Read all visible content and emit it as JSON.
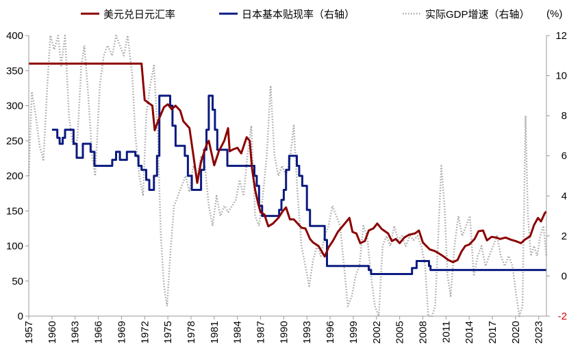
{
  "chart_data": {
    "type": "line",
    "title": "",
    "unit_label": "(%)",
    "legend_position": "top",
    "x_range": [
      1957,
      2024
    ],
    "x_ticks": [
      "1957",
      "1960",
      "1963",
      "1966",
      "1969",
      "1972",
      "1975",
      "1978",
      "1981",
      "1984",
      "1987",
      "1990",
      "1993",
      "1996",
      "1999",
      "2002",
      "2005",
      "2008",
      "2011",
      "2014",
      "2017",
      "2020",
      "2023"
    ],
    "y_left": {
      "range": [
        0,
        400
      ],
      "ticks": [
        "0",
        "50",
        "100",
        "150",
        "200",
        "250",
        "300",
        "350",
        "400"
      ]
    },
    "y_right": {
      "range": [
        -2,
        12
      ],
      "ticks": [
        "-2",
        "0",
        "2",
        "4",
        "6",
        "8",
        "10",
        "12"
      ],
      "negative_tick_color": "#d40000"
    },
    "series": [
      {
        "name": "美元兑日元汇率",
        "axis": "left",
        "color": "#8b0000",
        "style": "solid",
        "points": [
          [
            1957,
            360
          ],
          [
            1971.6,
            360
          ],
          [
            1972,
            308
          ],
          [
            1973,
            300
          ],
          [
            1973.3,
            265
          ],
          [
            1973.8,
            280
          ],
          [
            1974.5,
            298
          ],
          [
            1975,
            302
          ],
          [
            1975.5,
            295
          ],
          [
            1976,
            300
          ],
          [
            1976.6,
            293
          ],
          [
            1977,
            278
          ],
          [
            1977.8,
            268
          ],
          [
            1978.3,
            230
          ],
          [
            1978.8,
            190
          ],
          [
            1979.3,
            220
          ],
          [
            1980,
            244
          ],
          [
            1980.3,
            250
          ],
          [
            1981,
            215
          ],
          [
            1981.6,
            235
          ],
          [
            1982.3,
            250
          ],
          [
            1982.8,
            268
          ],
          [
            1983,
            235
          ],
          [
            1983.5,
            238
          ],
          [
            1984,
            240
          ],
          [
            1984.5,
            232
          ],
          [
            1985.2,
            255
          ],
          [
            1985.6,
            250
          ],
          [
            1985.9,
            210
          ],
          [
            1986.3,
            180
          ],
          [
            1986.7,
            160
          ],
          [
            1987,
            148
          ],
          [
            1987.5,
            145
          ],
          [
            1988,
            128
          ],
          [
            1988.6,
            132
          ],
          [
            1989.3,
            140
          ],
          [
            1989.9,
            150
          ],
          [
            1990.3,
            155
          ],
          [
            1990.8,
            138
          ],
          [
            1991.3,
            138
          ],
          [
            1991.8,
            132
          ],
          [
            1992.3,
            126
          ],
          [
            1992.8,
            125
          ],
          [
            1993.4,
            110
          ],
          [
            1993.8,
            105
          ],
          [
            1994.5,
            100
          ],
          [
            1995.3,
            85
          ],
          [
            1995.8,
            98
          ],
          [
            1996.4,
            108
          ],
          [
            1997,
            120
          ],
          [
            1997.6,
            128
          ],
          [
            1998.5,
            140
          ],
          [
            1998.9,
            120
          ],
          [
            1999.4,
            118
          ],
          [
            1999.9,
            104
          ],
          [
            2000.5,
            107
          ],
          [
            2001,
            122
          ],
          [
            2001.6,
            125
          ],
          [
            2002.1,
            132
          ],
          [
            2002.7,
            124
          ],
          [
            2003.5,
            118
          ],
          [
            2004,
            107
          ],
          [
            2004.5,
            110
          ],
          [
            2005,
            104
          ],
          [
            2005.6,
            112
          ],
          [
            2006.2,
            116
          ],
          [
            2007,
            118
          ],
          [
            2007.5,
            122
          ],
          [
            2008,
            105
          ],
          [
            2008.9,
            95
          ],
          [
            2009.5,
            93
          ],
          [
            2010,
            90
          ],
          [
            2010.7,
            85
          ],
          [
            2011.3,
            80
          ],
          [
            2011.9,
            77
          ],
          [
            2012.5,
            80
          ],
          [
            2013,
            92
          ],
          [
            2013.5,
            100
          ],
          [
            2014,
            102
          ],
          [
            2014.7,
            110
          ],
          [
            2015.2,
            121
          ],
          [
            2015.8,
            122
          ],
          [
            2016.3,
            108
          ],
          [
            2016.9,
            113
          ],
          [
            2017.5,
            112
          ],
          [
            2018,
            110
          ],
          [
            2018.7,
            112
          ],
          [
            2019.4,
            109
          ],
          [
            2020,
            107
          ],
          [
            2020.7,
            104
          ],
          [
            2021.2,
            109
          ],
          [
            2021.9,
            114
          ],
          [
            2022.4,
            130
          ],
          [
            2022.9,
            140
          ],
          [
            2023.3,
            135
          ],
          [
            2023.8,
            147
          ],
          [
            2024,
            149
          ]
        ]
      },
      {
        "name": "日本基本贴现率（右轴）",
        "axis": "right",
        "color": "#0a1a7f",
        "style": "step",
        "points": [
          [
            1960,
            7.3
          ],
          [
            1960.7,
            6.9
          ],
          [
            1961,
            6.6
          ],
          [
            1961.4,
            6.9
          ],
          [
            1961.7,
            7.3
          ],
          [
            1962.8,
            6.6
          ],
          [
            1963.2,
            5.9
          ],
          [
            1964,
            6.6
          ],
          [
            1965,
            6.2
          ],
          [
            1965.5,
            5.5
          ],
          [
            1967.8,
            5.8
          ],
          [
            1968.3,
            6.2
          ],
          [
            1968.8,
            5.8
          ],
          [
            1969.7,
            6.2
          ],
          [
            1970.8,
            6.0
          ],
          [
            1971.2,
            5.5
          ],
          [
            1971.6,
            5.3
          ],
          [
            1972.2,
            4.8
          ],
          [
            1972.6,
            4.3
          ],
          [
            1973.2,
            5.0
          ],
          [
            1973.6,
            6.0
          ],
          [
            1973.9,
            9.0
          ],
          [
            1975.3,
            8.5
          ],
          [
            1975.6,
            7.5
          ],
          [
            1976,
            6.5
          ],
          [
            1977.2,
            6.0
          ],
          [
            1977.6,
            5.0
          ],
          [
            1978.1,
            4.3
          ],
          [
            1978.9,
            4.3
          ],
          [
            1979.3,
            5.3
          ],
          [
            1979.7,
            6.3
          ],
          [
            1980,
            7.3
          ],
          [
            1980.3,
            9.0
          ],
          [
            1980.8,
            8.3
          ],
          [
            1981.1,
            7.3
          ],
          [
            1981.4,
            6.3
          ],
          [
            1982.7,
            5.5
          ],
          [
            1986.2,
            5.0
          ],
          [
            1986.5,
            4.5
          ],
          [
            1986.8,
            3.5
          ],
          [
            1987.2,
            3.0
          ],
          [
            1988.6,
            3.0
          ],
          [
            1989.4,
            3.3
          ],
          [
            1989.7,
            3.8
          ],
          [
            1990,
            4.3
          ],
          [
            1990.3,
            5.3
          ],
          [
            1990.7,
            6.0
          ],
          [
            1991.7,
            5.5
          ],
          [
            1992,
            5.0
          ],
          [
            1992.4,
            4.5
          ],
          [
            1993,
            3.3
          ],
          [
            1993.4,
            2.5
          ],
          [
            1995.3,
            1.8
          ],
          [
            1995.6,
            0.5
          ],
          [
            2001,
            0.3
          ],
          [
            2001.3,
            0.1
          ],
          [
            2006.6,
            0.4
          ],
          [
            2007.2,
            0.75
          ],
          [
            2008.8,
            0.5
          ],
          [
            2009,
            0.3
          ],
          [
            2024,
            0.3
          ]
        ]
      },
      {
        "name": "实际GDP增速（右轴）",
        "axis": "right",
        "color": "#a6a6a6",
        "style": "dotted",
        "points": [
          [
            1957,
            5.0
          ],
          [
            1957.4,
            9.2
          ],
          [
            1957.9,
            8.0
          ],
          [
            1958.4,
            6.5
          ],
          [
            1958.9,
            5.8
          ],
          [
            1959.4,
            9.5
          ],
          [
            1959.8,
            12.0
          ],
          [
            1960.3,
            11.3
          ],
          [
            1960.8,
            12.0
          ],
          [
            1961.2,
            10.5
          ],
          [
            1961.7,
            12.0
          ],
          [
            1962.2,
            8.0
          ],
          [
            1962.7,
            6.5
          ],
          [
            1963.3,
            6.8
          ],
          [
            1963.8,
            10.5
          ],
          [
            1964.2,
            11.5
          ],
          [
            1964.7,
            9.0
          ],
          [
            1965.2,
            6.0
          ],
          [
            1965.6,
            5.0
          ],
          [
            1966.2,
            9.5
          ],
          [
            1966.7,
            11.0
          ],
          [
            1967.2,
            11.5
          ],
          [
            1967.8,
            11.0
          ],
          [
            1968.3,
            12.0
          ],
          [
            1968.8,
            11.5
          ],
          [
            1969.3,
            11.0
          ],
          [
            1969.8,
            12.0
          ],
          [
            1970.4,
            10.0
          ],
          [
            1970.8,
            7.0
          ],
          [
            1971.3,
            5.0
          ],
          [
            1971.8,
            4.0
          ],
          [
            1972.2,
            8.0
          ],
          [
            1972.7,
            9.5
          ],
          [
            1973.2,
            10.5
          ],
          [
            1973.7,
            7.0
          ],
          [
            1974.1,
            2.0
          ],
          [
            1974.5,
            -0.5
          ],
          [
            1974.9,
            -1.5
          ],
          [
            1975.3,
            1.0
          ],
          [
            1975.8,
            3.5
          ],
          [
            1976.3,
            4.0
          ],
          [
            1976.8,
            4.5
          ],
          [
            1977.3,
            5.0
          ],
          [
            1977.8,
            4.2
          ],
          [
            1978.3,
            5.5
          ],
          [
            1978.8,
            5.0
          ],
          [
            1979.3,
            6.0
          ],
          [
            1979.8,
            5.5
          ],
          [
            1980.3,
            3.5
          ],
          [
            1980.8,
            2.5
          ],
          [
            1981.3,
            4.0
          ],
          [
            1981.8,
            3.0
          ],
          [
            1982.3,
            3.5
          ],
          [
            1982.8,
            3.2
          ],
          [
            1983.3,
            3.5
          ],
          [
            1983.8,
            3.8
          ],
          [
            1984.3,
            4.8
          ],
          [
            1984.8,
            4.0
          ],
          [
            1985.3,
            6.0
          ],
          [
            1985.8,
            7.5
          ],
          [
            1986.3,
            3.0
          ],
          [
            1986.8,
            2.5
          ],
          [
            1987.3,
            4.0
          ],
          [
            1987.8,
            6.0
          ],
          [
            1988.3,
            9.5
          ],
          [
            1988.8,
            6.0
          ],
          [
            1989.3,
            5.0
          ],
          [
            1989.8,
            5.5
          ],
          [
            1990.3,
            5.0
          ],
          [
            1990.8,
            5.8
          ],
          [
            1991.3,
            7.5
          ],
          [
            1991.8,
            4.0
          ],
          [
            1992.3,
            1.5
          ],
          [
            1992.8,
            0.5
          ],
          [
            1993.3,
            -0.5
          ],
          [
            1993.8,
            0.8
          ],
          [
            1994.3,
            1.5
          ],
          [
            1994.8,
            1.0
          ],
          [
            1995.3,
            2.0
          ],
          [
            1995.8,
            2.5
          ],
          [
            1996.3,
            3.5
          ],
          [
            1996.8,
            3.0
          ],
          [
            1997.3,
            2.5
          ],
          [
            1997.8,
            0.5
          ],
          [
            1998.3,
            -1.5
          ],
          [
            1998.8,
            -1.0
          ],
          [
            1999.3,
            0.0
          ],
          [
            1999.8,
            0.5
          ],
          [
            2000.3,
            2.5
          ],
          [
            2000.8,
            2.0
          ],
          [
            2001.3,
            0.0
          ],
          [
            2001.8,
            -1.5
          ],
          [
            2002.3,
            -2.0
          ],
          [
            2002.8,
            1.5
          ],
          [
            2003.3,
            2.0
          ],
          [
            2003.8,
            1.5
          ],
          [
            2004.3,
            2.5
          ],
          [
            2004.8,
            1.8
          ],
          [
            2005.3,
            2.0
          ],
          [
            2005.8,
            1.5
          ],
          [
            2006.3,
            2.0
          ],
          [
            2006.8,
            1.8
          ],
          [
            2007.3,
            2.0
          ],
          [
            2007.8,
            1.5
          ],
          [
            2008.3,
            0.5
          ],
          [
            2008.7,
            -2.0
          ],
          [
            2009.2,
            -2.0
          ],
          [
            2009.6,
            -1.5
          ],
          [
            2010.0,
            2.0
          ],
          [
            2010.4,
            5.5
          ],
          [
            2010.8,
            3.5
          ],
          [
            2011.2,
            0.0
          ],
          [
            2011.6,
            -1.0
          ],
          [
            2012.1,
            1.5
          ],
          [
            2012.6,
            3.0
          ],
          [
            2013.1,
            2.0
          ],
          [
            2013.6,
            2.5
          ],
          [
            2014.1,
            3.0
          ],
          [
            2014.6,
            0.0
          ],
          [
            2015.1,
            1.0
          ],
          [
            2015.6,
            1.5
          ],
          [
            2016.1,
            0.5
          ],
          [
            2016.6,
            1.0
          ],
          [
            2017.1,
            1.5
          ],
          [
            2017.6,
            2.0
          ],
          [
            2018.1,
            1.0
          ],
          [
            2018.6,
            0.5
          ],
          [
            2019.1,
            1.0
          ],
          [
            2019.6,
            0.5
          ],
          [
            2020.1,
            -1.0
          ],
          [
            2020.5,
            -2.0
          ],
          [
            2020.9,
            -1.5
          ],
          [
            2021.3,
            8.0
          ],
          [
            2021.6,
            3.0
          ],
          [
            2022.0,
            1.0
          ],
          [
            2022.4,
            1.5
          ],
          [
            2022.8,
            1.0
          ],
          [
            2023.2,
            2.0
          ],
          [
            2023.6,
            2.5
          ],
          [
            2024,
            1.0
          ]
        ]
      }
    ]
  }
}
